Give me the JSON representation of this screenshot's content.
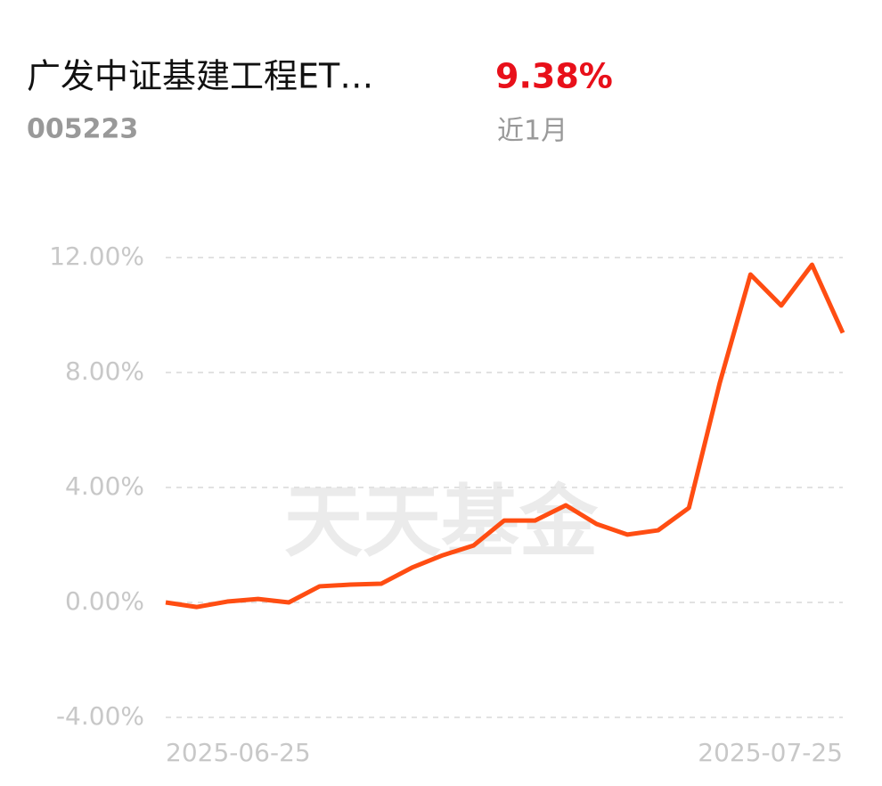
{
  "header": {
    "title": "广发中证基建工程ET…",
    "code": "005223",
    "return": "9.38%",
    "period": "近1月"
  },
  "chart_data": {
    "type": "line",
    "watermark": "天天基金",
    "categories": [
      "2025-06-25",
      null,
      null,
      null,
      null,
      null,
      null,
      null,
      null,
      null,
      null,
      null,
      null,
      null,
      null,
      null,
      null,
      null,
      null,
      null,
      null,
      null,
      "2025-07-25"
    ],
    "series": [
      {
        "color": "#ff4d12",
        "values": [
          0,
          -0.16,
          0.03,
          0.12,
          0.0,
          0.56,
          0.62,
          0.65,
          1.21,
          1.64,
          1.98,
          2.85,
          2.85,
          3.38,
          2.73,
          2.36,
          2.51,
          3.29,
          7.63,
          11.41,
          10.33,
          11.75,
          9.38
        ]
      }
    ],
    "ylim": [
      -4,
      12
    ],
    "yticks": [
      {
        "value": 12,
        "label": "12.00%"
      },
      {
        "value": 8,
        "label": "8.00%"
      },
      {
        "value": 4,
        "label": "4.00%"
      },
      {
        "value": 0,
        "label": "0.00%"
      },
      {
        "value": -4,
        "label": "-4.00%"
      }
    ],
    "grid": true
  }
}
